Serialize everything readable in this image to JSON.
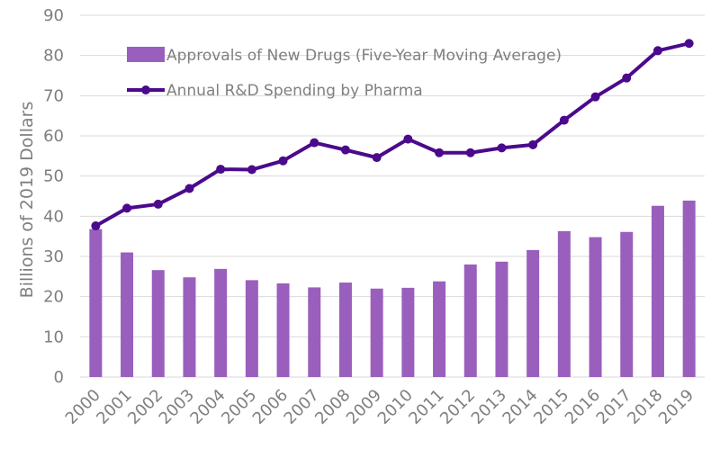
{
  "chart_data": {
    "type": "bar",
    "title": "",
    "xlabel": "",
    "ylabel": "Billions of 2019 Dollars",
    "ylim": [
      0,
      90
    ],
    "yticks": [
      0,
      10,
      20,
      30,
      40,
      50,
      60,
      70,
      80,
      90
    ],
    "grid": true,
    "legend_position": "top-left",
    "categories": [
      "2000",
      "2001",
      "2002",
      "2003",
      "2004",
      "2005",
      "2006",
      "2007",
      "2008",
      "2009",
      "2010",
      "2011",
      "2012",
      "2013",
      "2014",
      "2015",
      "2016",
      "2017",
      "2018",
      "2019"
    ],
    "series": [
      {
        "name": "Approvals of New Drugs (Five-Year Moving Average)",
        "type": "bar",
        "color": "#9a5fbd",
        "values": [
          36.8,
          31.0,
          26.6,
          24.8,
          26.9,
          24.1,
          23.3,
          22.3,
          23.5,
          22.0,
          22.2,
          23.8,
          28.0,
          28.7,
          31.6,
          36.3,
          34.8,
          36.1,
          42.6,
          43.9
        ]
      },
      {
        "name": "Annual R&D Spending by Pharma",
        "type": "line",
        "color": "#4b0a8c",
        "values": [
          37.6,
          42.0,
          43.0,
          46.9,
          51.7,
          51.6,
          53.8,
          58.3,
          56.5,
          54.6,
          59.2,
          55.8,
          55.8,
          57.0,
          57.8,
          63.9,
          69.7,
          74.4,
          81.2,
          83.0
        ]
      }
    ]
  }
}
